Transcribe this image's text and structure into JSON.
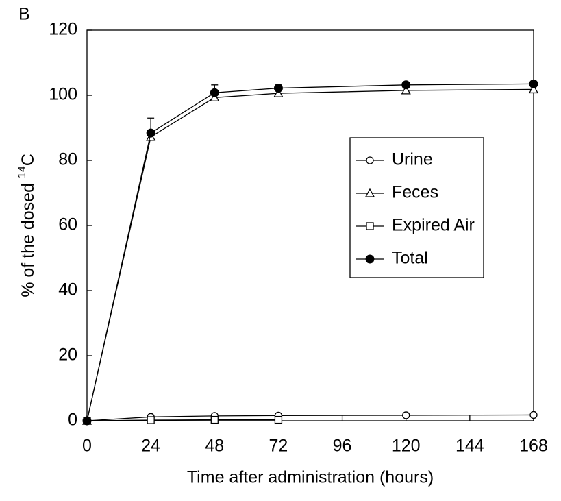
{
  "chart_data": {
    "type": "line",
    "panel_label": "B",
    "x_label": "Time after administration (hours)",
    "y_label": {
      "text": "% of the dosed ",
      "superscript": "14",
      "suffix": "C"
    },
    "x": [
      0,
      24,
      48,
      72,
      120,
      168
    ],
    "xlim": [
      0,
      168
    ],
    "xticks": [
      0,
      24,
      48,
      72,
      96,
      120,
      144,
      168
    ],
    "ylim": [
      0,
      120
    ],
    "yticks": [
      0,
      20,
      40,
      60,
      80,
      100,
      120
    ],
    "legend": "right",
    "series": [
      {
        "name": "Urine",
        "color": "#000000",
        "marker": "open-circle",
        "values": [
          0,
          1.2,
          1.5,
          1.6,
          1.7,
          1.8
        ]
      },
      {
        "name": "Feces",
        "color": "#000000",
        "marker": "open-triangle",
        "values": [
          0,
          87.2,
          99.3,
          100.6,
          101.5,
          101.8
        ]
      },
      {
        "name": "Expired Air",
        "color": "#000000",
        "marker": "open-square",
        "values": [
          0,
          0.2,
          0.3,
          0.3,
          null,
          null
        ]
      },
      {
        "name": "Total",
        "color": "#000000",
        "marker": "filled-circle",
        "values": [
          0,
          88.4,
          100.8,
          102.2,
          103.2,
          103.5
        ],
        "errors": [
          null,
          4.6,
          2.4,
          1.0,
          0.6,
          0.6
        ]
      }
    ]
  }
}
